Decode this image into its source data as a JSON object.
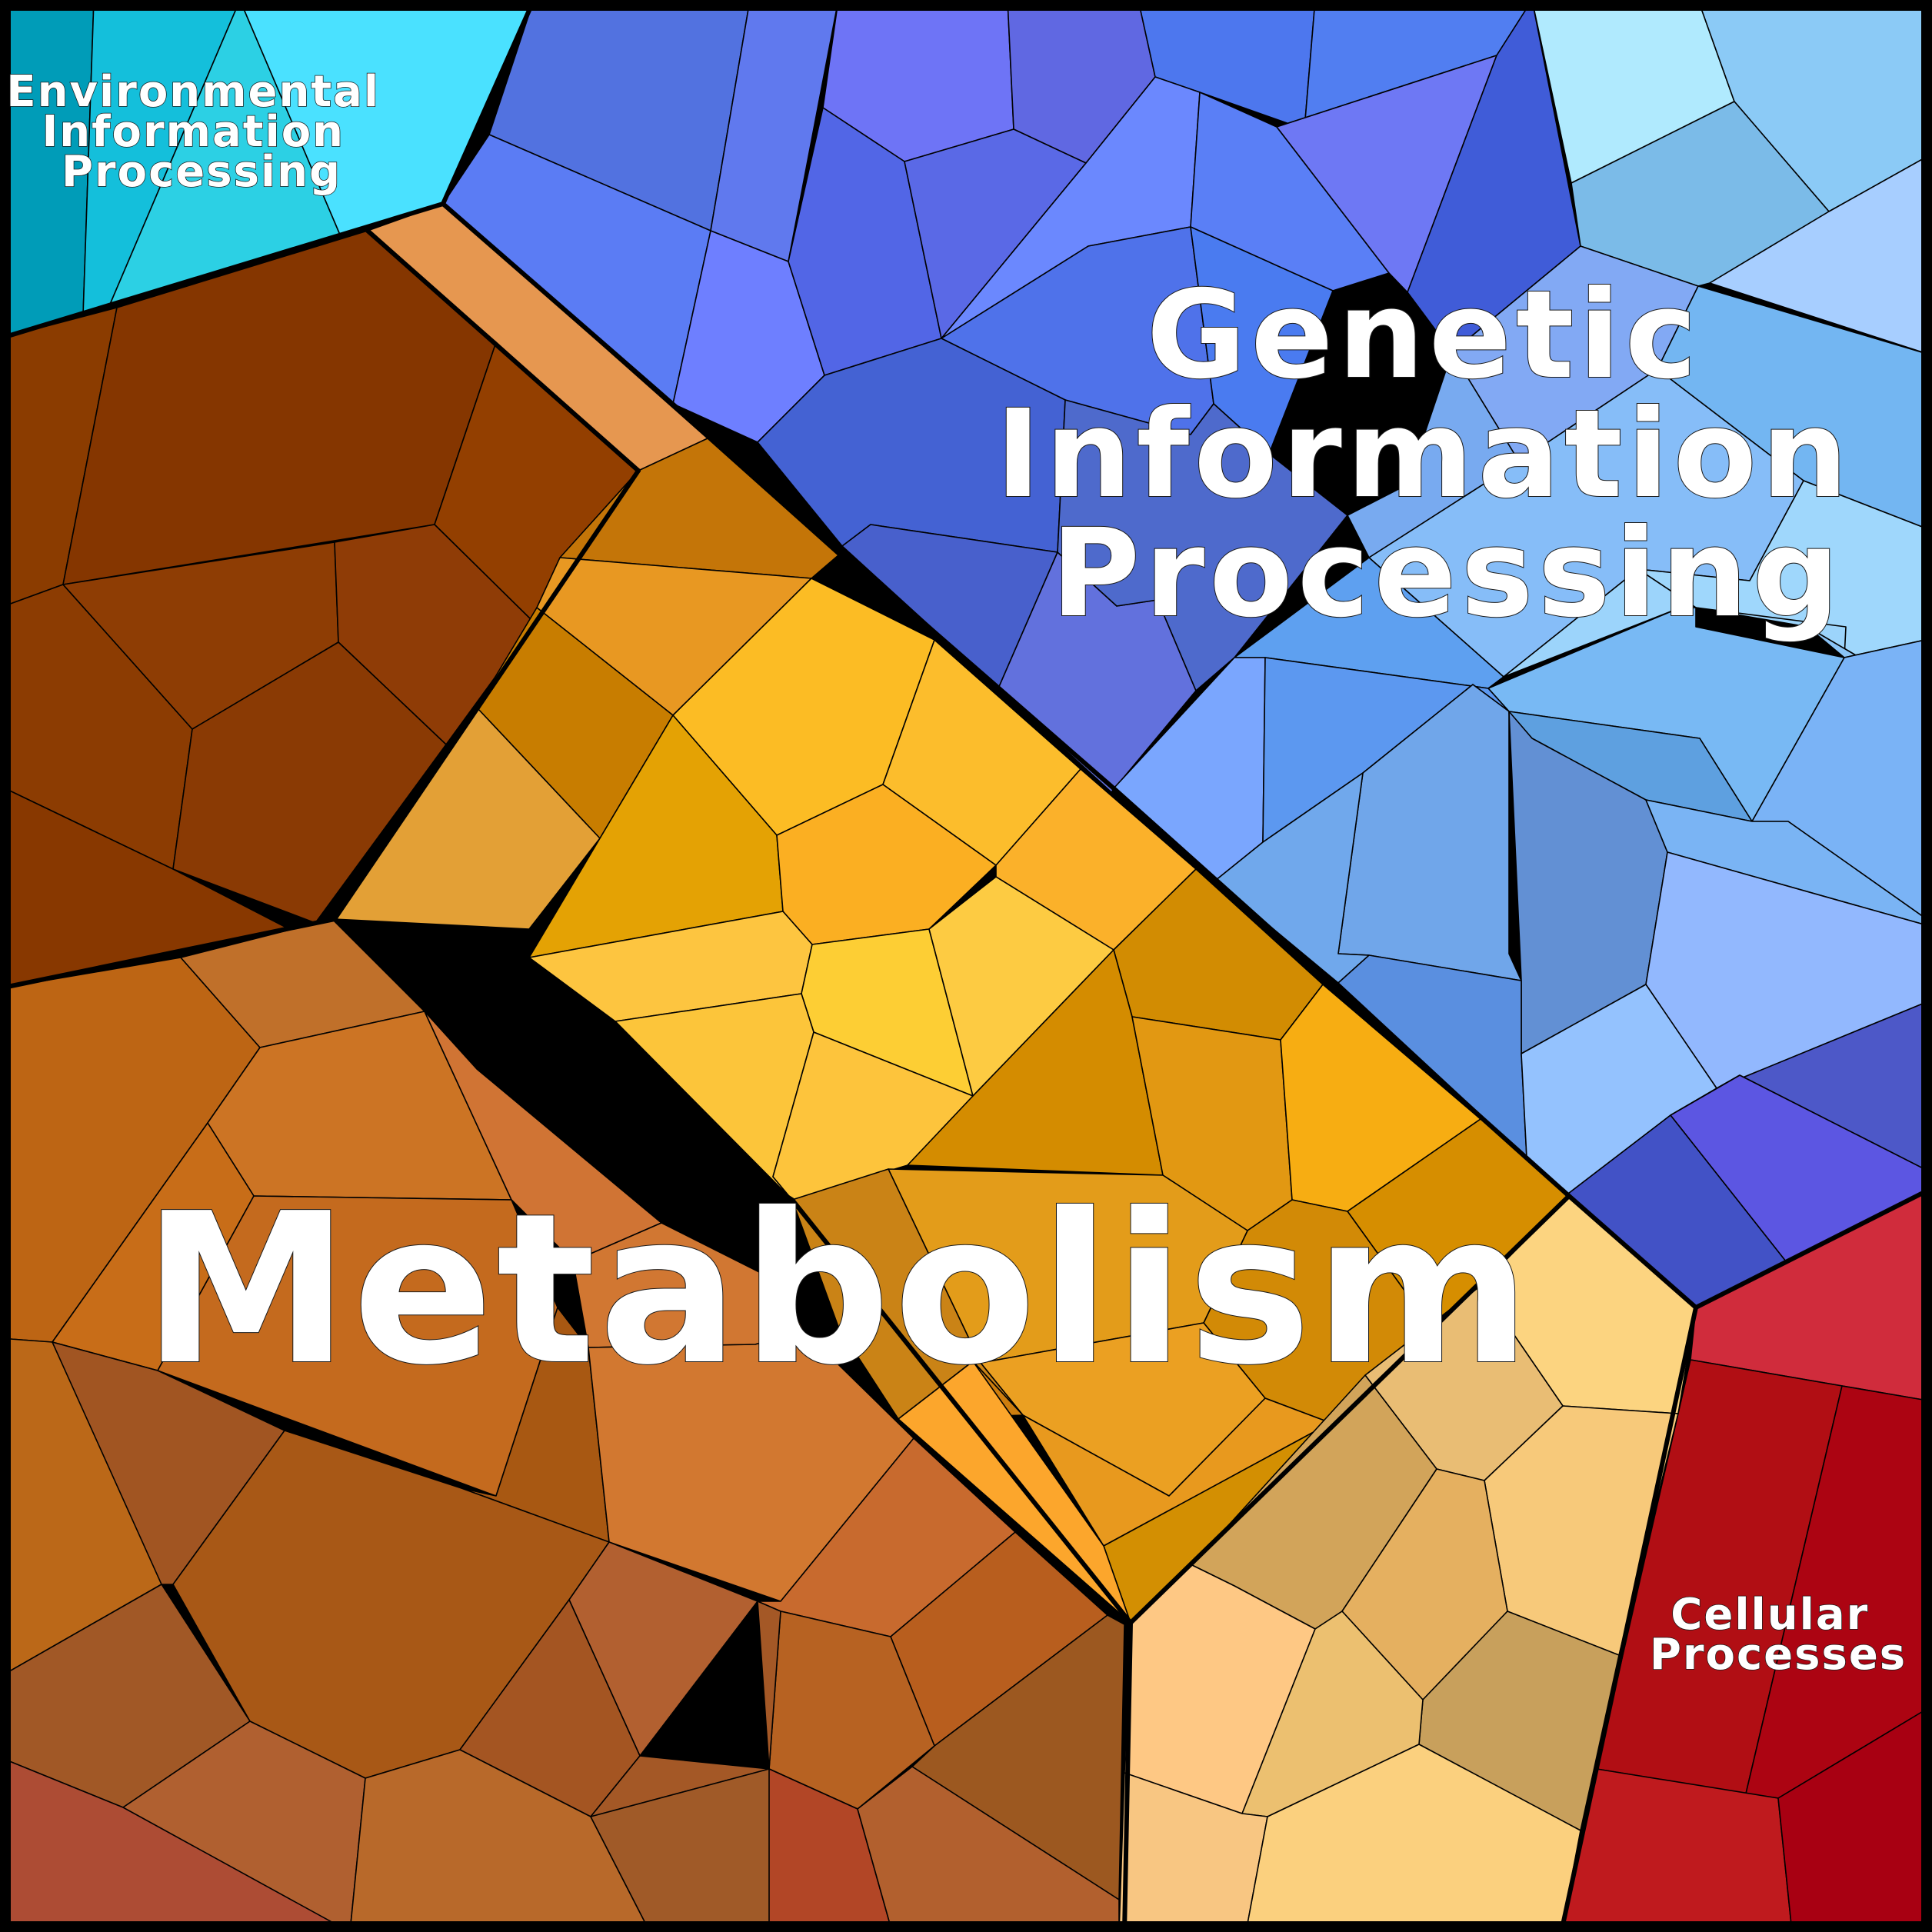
{
  "diagram": {
    "type": "voronoi-treemap",
    "categories": [
      {
        "name": "Metabolism",
        "color": "#d77a2a",
        "lines": [
          "Metabolism"
        ]
      },
      {
        "name": "Genetic Information Processing",
        "color": "#4f74e8",
        "lines": [
          "Genetic",
          "Information",
          "Processing"
        ]
      },
      {
        "name": "Environmental Information Processing",
        "color": "#2cc6e0",
        "lines": [
          "Environmental",
          "Information",
          "Processing"
        ]
      },
      {
        "name": "Cellular Processes",
        "color": "#c8141e",
        "lines": [
          "Cellular",
          "Processes"
        ]
      }
    ]
  }
}
